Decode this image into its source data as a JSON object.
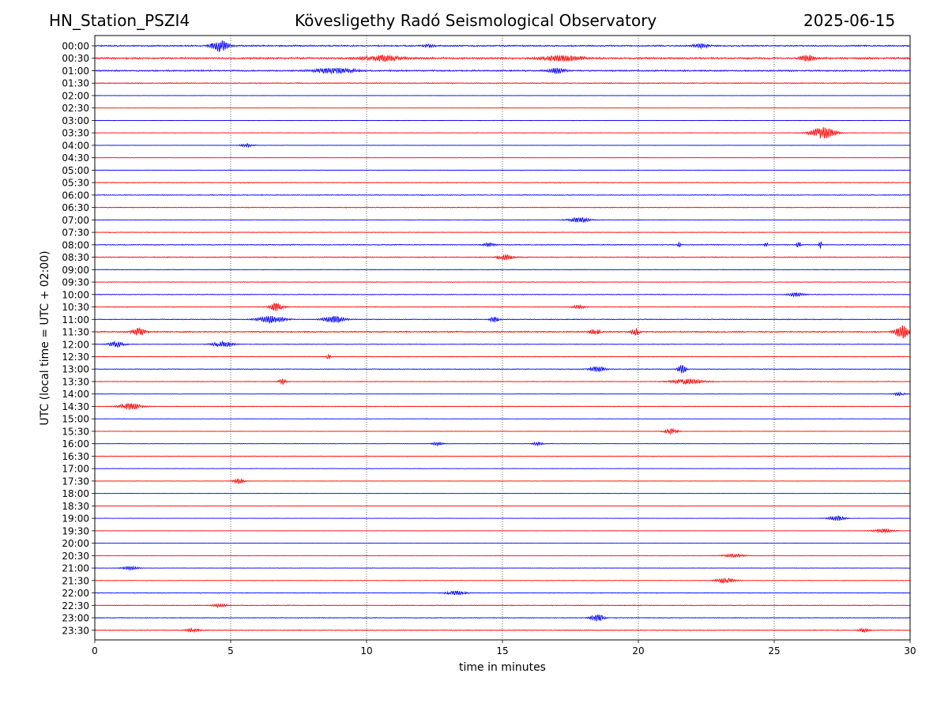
{
  "header": {
    "station": "HN_Station_PSZI4",
    "observatory": "Kövesligethy Radó Seismological Observatory",
    "date": "2025-06-15"
  },
  "chart_data": {
    "type": "line",
    "subtype": "helicorder",
    "xlabel": "time in minutes",
    "ylabel": "UTC (local time = UTC + 02:00)",
    "xlim": [
      0,
      30
    ],
    "xticks": [
      0,
      5,
      10,
      15,
      20,
      25,
      30
    ],
    "grid": "vertical dotted lines at 5-minute intervals",
    "colors": {
      "even_rows": "#0000ff",
      "odd_rows": "#ff0000"
    },
    "rows": [
      "00:00",
      "00:30",
      "01:00",
      "01:30",
      "02:00",
      "02:30",
      "03:00",
      "03:30",
      "04:00",
      "04:30",
      "05:00",
      "05:30",
      "06:00",
      "06:30",
      "07:00",
      "07:30",
      "08:00",
      "08:30",
      "09:00",
      "09:30",
      "10:00",
      "10:30",
      "11:00",
      "11:30",
      "12:00",
      "12:30",
      "13:00",
      "13:30",
      "14:00",
      "14:30",
      "15:00",
      "15:30",
      "16:00",
      "16:30",
      "17:00",
      "17:30",
      "18:00",
      "18:30",
      "19:00",
      "19:30",
      "20:00",
      "20:30",
      "21:00",
      "21:30",
      "22:00",
      "22:30",
      "23:00",
      "23:30"
    ],
    "noise_level": [
      0.8,
      1.0,
      0.8,
      0.5,
      0.15,
      0.1,
      0.12,
      0.25,
      0.15,
      0.15,
      0.25,
      0.35,
      0.45,
      0.4,
      0.25,
      0.3,
      0.5,
      0.5,
      0.3,
      0.35,
      0.35,
      0.4,
      0.4,
      0.7,
      0.3,
      0.3,
      0.35,
      0.35,
      0.2,
      0.3,
      0.2,
      0.2,
      0.2,
      0.2,
      0.2,
      0.2,
      0.15,
      0.15,
      0.15,
      0.15,
      0.1,
      0.2,
      0.2,
      0.25,
      0.35,
      0.4,
      0.4,
      0.4
    ],
    "events": [
      {
        "row": "00:00",
        "minute": 4.6,
        "amp": 7,
        "dur": 0.6
      },
      {
        "row": "00:00",
        "minute": 12.3,
        "amp": 2,
        "dur": 0.4
      },
      {
        "row": "00:00",
        "minute": 22.3,
        "amp": 2,
        "dur": 0.6
      },
      {
        "row": "00:30",
        "minute": 10.6,
        "amp": 3,
        "dur": 1.5
      },
      {
        "row": "00:30",
        "minute": 17.2,
        "amp": 3,
        "dur": 1.5
      },
      {
        "row": "00:30",
        "minute": 26.2,
        "amp": 4,
        "dur": 0.5
      },
      {
        "row": "01:00",
        "minute": 8.8,
        "amp": 3,
        "dur": 1.5
      },
      {
        "row": "01:00",
        "minute": 17.0,
        "amp": 3,
        "dur": 0.6
      },
      {
        "row": "03:30",
        "minute": 26.8,
        "amp": 7,
        "dur": 0.9
      },
      {
        "row": "04:00",
        "minute": 5.6,
        "amp": 2,
        "dur": 0.5
      },
      {
        "row": "07:00",
        "minute": 17.8,
        "amp": 3,
        "dur": 0.8
      },
      {
        "row": "08:00",
        "minute": 21.5,
        "amp": 5,
        "dur": 0.1
      },
      {
        "row": "08:00",
        "minute": 24.7,
        "amp": 4,
        "dur": 0.1
      },
      {
        "row": "08:00",
        "minute": 25.9,
        "amp": 4,
        "dur": 0.15
      },
      {
        "row": "08:00",
        "minute": 26.7,
        "amp": 4,
        "dur": 0.1
      },
      {
        "row": "08:00",
        "minute": 14.5,
        "amp": 2,
        "dur": 0.4
      },
      {
        "row": "08:30",
        "minute": 15.1,
        "amp": 3,
        "dur": 0.6
      },
      {
        "row": "10:00",
        "minute": 25.8,
        "amp": 2,
        "dur": 0.6
      },
      {
        "row": "10:30",
        "minute": 6.7,
        "amp": 5,
        "dur": 0.5
      },
      {
        "row": "10:30",
        "minute": 17.8,
        "amp": 2,
        "dur": 0.4
      },
      {
        "row": "11:00",
        "minute": 6.5,
        "amp": 4,
        "dur": 1.0
      },
      {
        "row": "11:00",
        "minute": 8.8,
        "amp": 4,
        "dur": 0.8
      },
      {
        "row": "11:00",
        "minute": 14.7,
        "amp": 4,
        "dur": 0.3
      },
      {
        "row": "11:30",
        "minute": 1.6,
        "amp": 4,
        "dur": 0.5
      },
      {
        "row": "11:30",
        "minute": 18.4,
        "amp": 3,
        "dur": 0.4
      },
      {
        "row": "11:30",
        "minute": 19.9,
        "amp": 4,
        "dur": 0.3
      },
      {
        "row": "11:30",
        "minute": 29.7,
        "amp": 8,
        "dur": 0.5
      },
      {
        "row": "12:00",
        "minute": 0.8,
        "amp": 3,
        "dur": 0.6
      },
      {
        "row": "12:00",
        "minute": 4.7,
        "amp": 3,
        "dur": 0.8
      },
      {
        "row": "12:30",
        "minute": 8.6,
        "amp": 3,
        "dur": 0.15
      },
      {
        "row": "13:00",
        "minute": 18.5,
        "amp": 3,
        "dur": 0.6
      },
      {
        "row": "13:00",
        "minute": 21.6,
        "amp": 5,
        "dur": 0.3
      },
      {
        "row": "13:30",
        "minute": 6.9,
        "amp": 3,
        "dur": 0.3
      },
      {
        "row": "13:30",
        "minute": 21.8,
        "amp": 3,
        "dur": 1.2
      },
      {
        "row": "14:00",
        "minute": 29.6,
        "amp": 2,
        "dur": 0.4
      },
      {
        "row": "14:30",
        "minute": 1.3,
        "amp": 4,
        "dur": 0.8
      },
      {
        "row": "15:30",
        "minute": 21.2,
        "amp": 3,
        "dur": 0.5
      },
      {
        "row": "16:00",
        "minute": 12.6,
        "amp": 2,
        "dur": 0.4
      },
      {
        "row": "16:00",
        "minute": 16.3,
        "amp": 2,
        "dur": 0.4
      },
      {
        "row": "17:30",
        "minute": 5.3,
        "amp": 3,
        "dur": 0.4
      },
      {
        "row": "19:00",
        "minute": 27.3,
        "amp": 3,
        "dur": 0.6
      },
      {
        "row": "19:30",
        "minute": 29.0,
        "amp": 2,
        "dur": 0.8
      },
      {
        "row": "20:30",
        "minute": 23.5,
        "amp": 2,
        "dur": 0.8
      },
      {
        "row": "21:00",
        "minute": 1.3,
        "amp": 2,
        "dur": 0.6
      },
      {
        "row": "21:30",
        "minute": 23.2,
        "amp": 3,
        "dur": 0.7
      },
      {
        "row": "22:00",
        "minute": 13.3,
        "amp": 2,
        "dur": 0.8
      },
      {
        "row": "22:30",
        "minute": 4.6,
        "amp": 2,
        "dur": 0.5
      },
      {
        "row": "23:00",
        "minute": 18.5,
        "amp": 4,
        "dur": 0.5
      },
      {
        "row": "23:30",
        "minute": 3.6,
        "amp": 2,
        "dur": 0.5
      },
      {
        "row": "23:30",
        "minute": 28.3,
        "amp": 2,
        "dur": 0.4
      }
    ]
  }
}
